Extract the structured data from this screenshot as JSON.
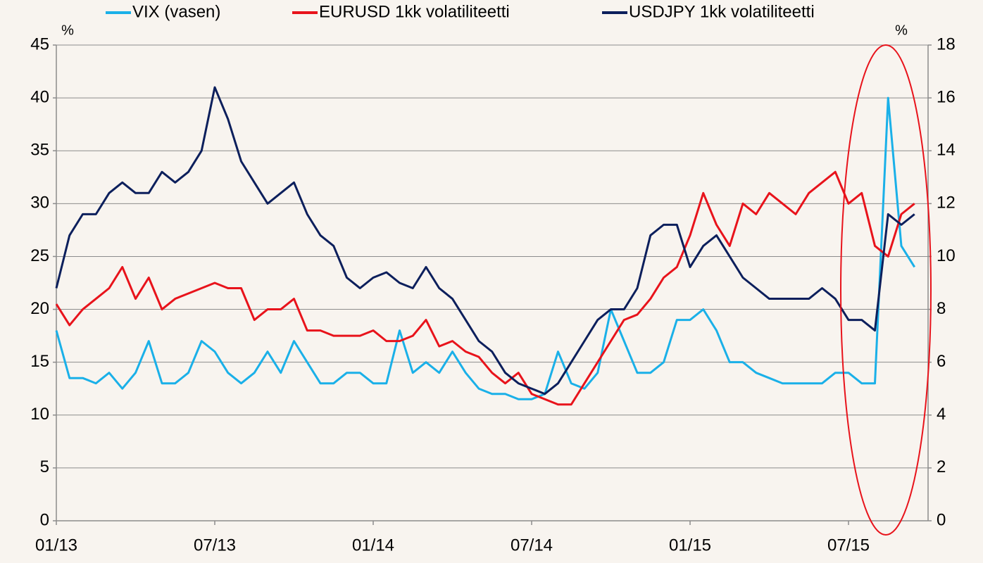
{
  "chart_data": {
    "type": "line",
    "y_unit": "%",
    "y2_unit": "%",
    "categories": [
      "01/13",
      null,
      null,
      null,
      null,
      null,
      null,
      null,
      null,
      null,
      null,
      null,
      "07/13",
      null,
      null,
      null,
      null,
      null,
      null,
      null,
      null,
      null,
      null,
      null,
      "01/14",
      null,
      null,
      null,
      null,
      null,
      null,
      null,
      null,
      null,
      null,
      null,
      "07/14",
      null,
      null,
      null,
      null,
      null,
      null,
      null,
      null,
      null,
      null,
      null,
      "01/15",
      null,
      null,
      null,
      null,
      null,
      null,
      null,
      null,
      null,
      null,
      null,
      "07/15",
      null,
      null,
      null,
      null,
      null
    ],
    "series": [
      {
        "name": "VIX (vasen)",
        "color": "#1ab0e8",
        "axis": "y",
        "values": [
          18,
          13.5,
          13.5,
          13,
          14,
          12.5,
          14,
          17,
          13,
          13,
          14,
          17,
          16,
          14,
          13,
          14,
          16,
          14,
          17,
          15,
          13,
          13,
          14,
          14,
          13,
          13,
          18,
          14,
          15,
          14,
          16,
          14,
          12.5,
          12,
          12,
          11.5,
          11.5,
          12,
          16,
          13,
          12.5,
          14,
          20,
          17,
          14,
          14,
          15,
          19,
          19,
          20,
          18,
          15,
          15,
          14,
          13.5,
          13,
          13,
          13,
          13,
          14,
          14,
          13,
          13,
          40,
          26,
          24
        ]
      },
      {
        "name": "EURUSD 1kk volatiliteetti",
        "color": "#e8131b",
        "axis": "y2",
        "values": [
          8.2,
          7.4,
          8,
          8.4,
          8.8,
          9.6,
          8.4,
          9.2,
          8,
          8.4,
          8.6,
          8.8,
          9,
          8.8,
          8.8,
          7.6,
          8,
          8,
          8.4,
          7.2,
          7.2,
          7,
          7,
          7,
          7.2,
          6.8,
          6.8,
          7,
          7.6,
          6.6,
          6.8,
          6.4,
          6.2,
          5.6,
          5.2,
          5.6,
          4.8,
          4.6,
          4.4,
          4.4,
          5.2,
          6,
          6.8,
          7.6,
          7.8,
          8.4,
          9.2,
          9.6,
          10.8,
          12.4,
          11.2,
          10.4,
          12,
          11.6,
          12.4,
          12,
          11.6,
          12.4,
          12.8,
          13.2,
          12,
          12.4,
          10.4,
          10,
          11.6,
          12
        ]
      },
      {
        "name": "USDJPY 1kk volatiliteetti",
        "color": "#0c1f5c",
        "axis": "y2",
        "values": [
          8.8,
          10.8,
          11.6,
          11.6,
          12.4,
          12.8,
          12.4,
          12.4,
          13.2,
          12.8,
          13.2,
          14,
          16.4,
          15.2,
          13.6,
          12.8,
          12,
          12.4,
          12.8,
          11.6,
          10.8,
          10.4,
          9.2,
          8.8,
          9.2,
          9.4,
          9,
          8.8,
          9.6,
          8.8,
          8.4,
          7.6,
          6.8,
          6.4,
          5.6,
          5.2,
          5,
          4.8,
          5.2,
          6,
          6.8,
          7.6,
          8,
          8,
          8.8,
          10.8,
          11.2,
          11.2,
          9.6,
          10.4,
          10.8,
          10,
          9.2,
          8.8,
          8.4,
          8.4,
          8.4,
          8.4,
          8.8,
          8.4,
          7.6,
          7.6,
          7.2,
          11.6,
          11.2,
          11.6
        ]
      }
    ],
    "ylim": [
      0,
      45
    ],
    "yticks": [
      0,
      5,
      10,
      15,
      20,
      25,
      30,
      35,
      40,
      45
    ],
    "y2lim": [
      0,
      18
    ],
    "y2ticks": [
      0,
      2,
      4,
      6,
      8,
      10,
      12,
      14,
      16,
      18
    ],
    "grid": true,
    "legend": "top"
  }
}
